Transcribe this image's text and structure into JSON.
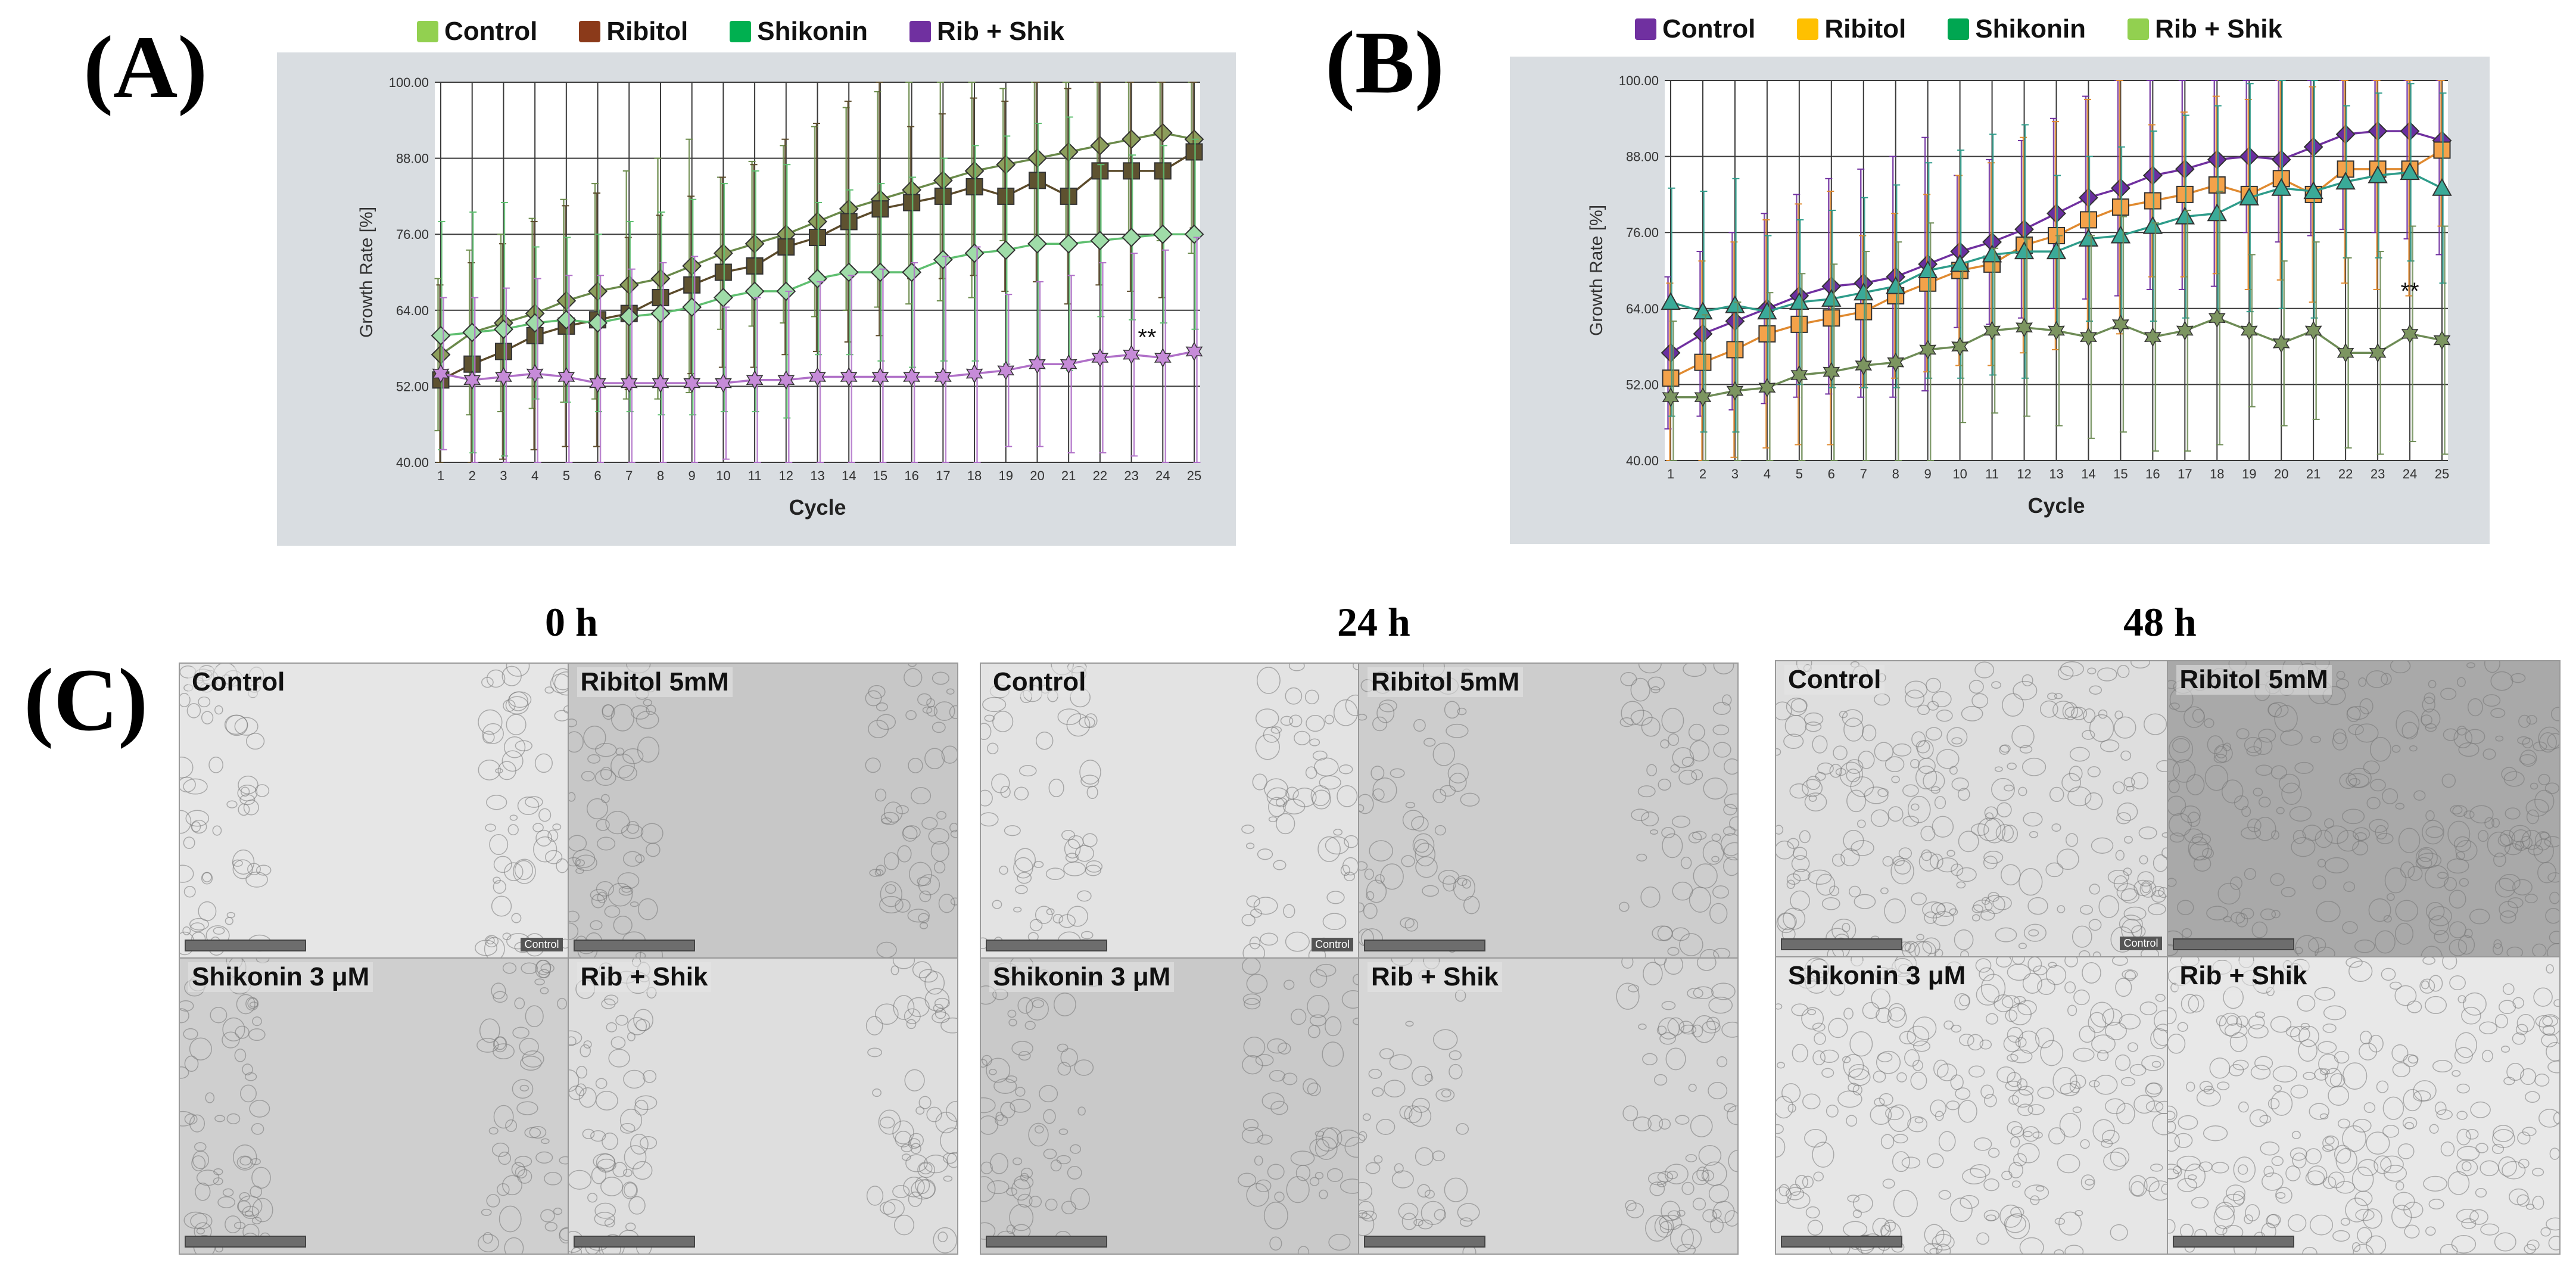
{
  "panels": {
    "a_letter": "(A)",
    "b_letter": "(B)",
    "c_letter": "(C)"
  },
  "chart_data": [
    {
      "type": "line",
      "id": "A",
      "xlabel": "Cycle",
      "ylabel": "Growth Rate [%]",
      "ylim": [
        40,
        100
      ],
      "yticks": [
        "40.00",
        "52.00",
        "64.00",
        "76.00",
        "88.00",
        "100.00"
      ],
      "x": [
        1,
        2,
        3,
        4,
        5,
        6,
        7,
        8,
        9,
        10,
        11,
        12,
        13,
        14,
        15,
        16,
        17,
        18,
        19,
        20,
        21,
        22,
        23,
        24,
        25
      ],
      "annotation": "**",
      "annotation_x": 23.5,
      "annotation_y": 58.5,
      "series": [
        {
          "name": "Control",
          "legend_color": "#92d050",
          "line_color": "#6a8a4a",
          "marker": "diamond",
          "marker_color": "#8c9e5c",
          "values": [
            57,
            60.5,
            62,
            63.5,
            65.5,
            67,
            68,
            69,
            71,
            73,
            74.5,
            76,
            78,
            80,
            81.5,
            83,
            84.5,
            86,
            87,
            88,
            89,
            90,
            91,
            92,
            91
          ]
        },
        {
          "name": "Ribitol",
          "legend_color": "#8b3a1a",
          "line_color": "#5b4a2a",
          "marker": "square",
          "marker_color": "#5e5230",
          "values": [
            53,
            55.5,
            57.5,
            60,
            61.5,
            62.5,
            63.5,
            66,
            68,
            70,
            71,
            74,
            75.5,
            78,
            80,
            81,
            82,
            83.5,
            82,
            84.5,
            82,
            86,
            86,
            86,
            89
          ]
        },
        {
          "name": "Shikonin",
          "legend_color": "#00b050",
          "line_color": "#5fbf70",
          "marker": "diamond",
          "marker_color": "#9fdca8",
          "values": [
            60,
            60.5,
            61,
            62,
            62.5,
            62,
            63,
            63.5,
            64.5,
            66,
            67,
            67,
            69,
            70,
            70,
            70,
            72,
            73,
            73.5,
            74.5,
            74.5,
            75,
            75.5,
            76,
            76
          ]
        },
        {
          "name": "Rib + Shik",
          "legend_color": "#7030a0",
          "line_color": "#b070c8",
          "marker": "star",
          "marker_color": "#c68bd8",
          "values": [
            54,
            53,
            53.5,
            54,
            53.5,
            52.5,
            52.5,
            52.5,
            52.5,
            52.5,
            53,
            53,
            53.5,
            53.5,
            53.5,
            53.5,
            53.5,
            54,
            54.5,
            55.5,
            55.5,
            56.5,
            57,
            56.5,
            57.5
          ]
        }
      ]
    },
    {
      "type": "line",
      "id": "B",
      "xlabel": "Cycle",
      "ylabel": "Growth Rate [%]",
      "ylim": [
        40,
        100
      ],
      "yticks": [
        "40.00",
        "52.00",
        "64.00",
        "76.00",
        "88.00",
        "100.00"
      ],
      "x": [
        1,
        2,
        3,
        4,
        5,
        6,
        7,
        8,
        9,
        10,
        11,
        12,
        13,
        14,
        15,
        16,
        17,
        18,
        19,
        20,
        21,
        22,
        23,
        24,
        25
      ],
      "annotation": "**",
      "annotation_x": 24,
      "annotation_y": 65.5,
      "series": [
        {
          "name": "Control",
          "legend_color": "#7030a0",
          "line_color": "#7030a0",
          "marker": "diamond",
          "marker_color": "#6a2fa0",
          "values": [
            57,
            60,
            62,
            64,
            66,
            67.5,
            68,
            69,
            71,
            73,
            74.5,
            76.5,
            79,
            81.5,
            83,
            85,
            86,
            87.5,
            88,
            87.5,
            89.5,
            91.5,
            92,
            92,
            90.5
          ]
        },
        {
          "name": "Ribitol",
          "legend_color": "#ffc000",
          "line_color": "#e08a30",
          "marker": "square",
          "marker_color": "#f4a24a",
          "values": [
            53,
            55.5,
            57.5,
            60,
            61.5,
            62.5,
            63.5,
            66,
            68,
            70,
            71,
            74,
            75.5,
            78,
            80,
            81,
            82,
            83.5,
            82,
            84.5,
            82,
            86,
            86,
            86,
            89
          ]
        },
        {
          "name": "Shikonin",
          "legend_color": "#00a651",
          "line_color": "#2e9c8a",
          "marker": "triangle",
          "marker_color": "#3aaa98",
          "values": [
            65,
            63.5,
            64.5,
            63.5,
            65,
            65.5,
            66.5,
            67.5,
            70,
            71,
            72.5,
            73,
            73,
            75,
            75.5,
            77,
            78.5,
            79,
            81.5,
            83,
            82.5,
            84,
            85,
            85.5,
            83
          ]
        },
        {
          "name": "Rib + Shik",
          "legend_color": "#92d050",
          "line_color": "#6e8c56",
          "marker": "star",
          "marker_color": "#7c9560",
          "values": [
            50,
            50,
            51,
            51.5,
            53.5,
            54,
            55,
            55.5,
            57.5,
            58,
            60.5,
            61,
            60.5,
            59.5,
            61.5,
            59.5,
            60.5,
            62.5,
            60.5,
            58.5,
            60.5,
            57,
            57,
            60,
            59
          ]
        }
      ]
    }
  ],
  "micrographs": {
    "time_points": [
      "0 h",
      "24 h",
      "48 h"
    ],
    "labels": [
      "Control",
      "Ribitol 5mM",
      "Shikonin 3 μM",
      "Rib + Shik"
    ],
    "stamp": "Control"
  }
}
